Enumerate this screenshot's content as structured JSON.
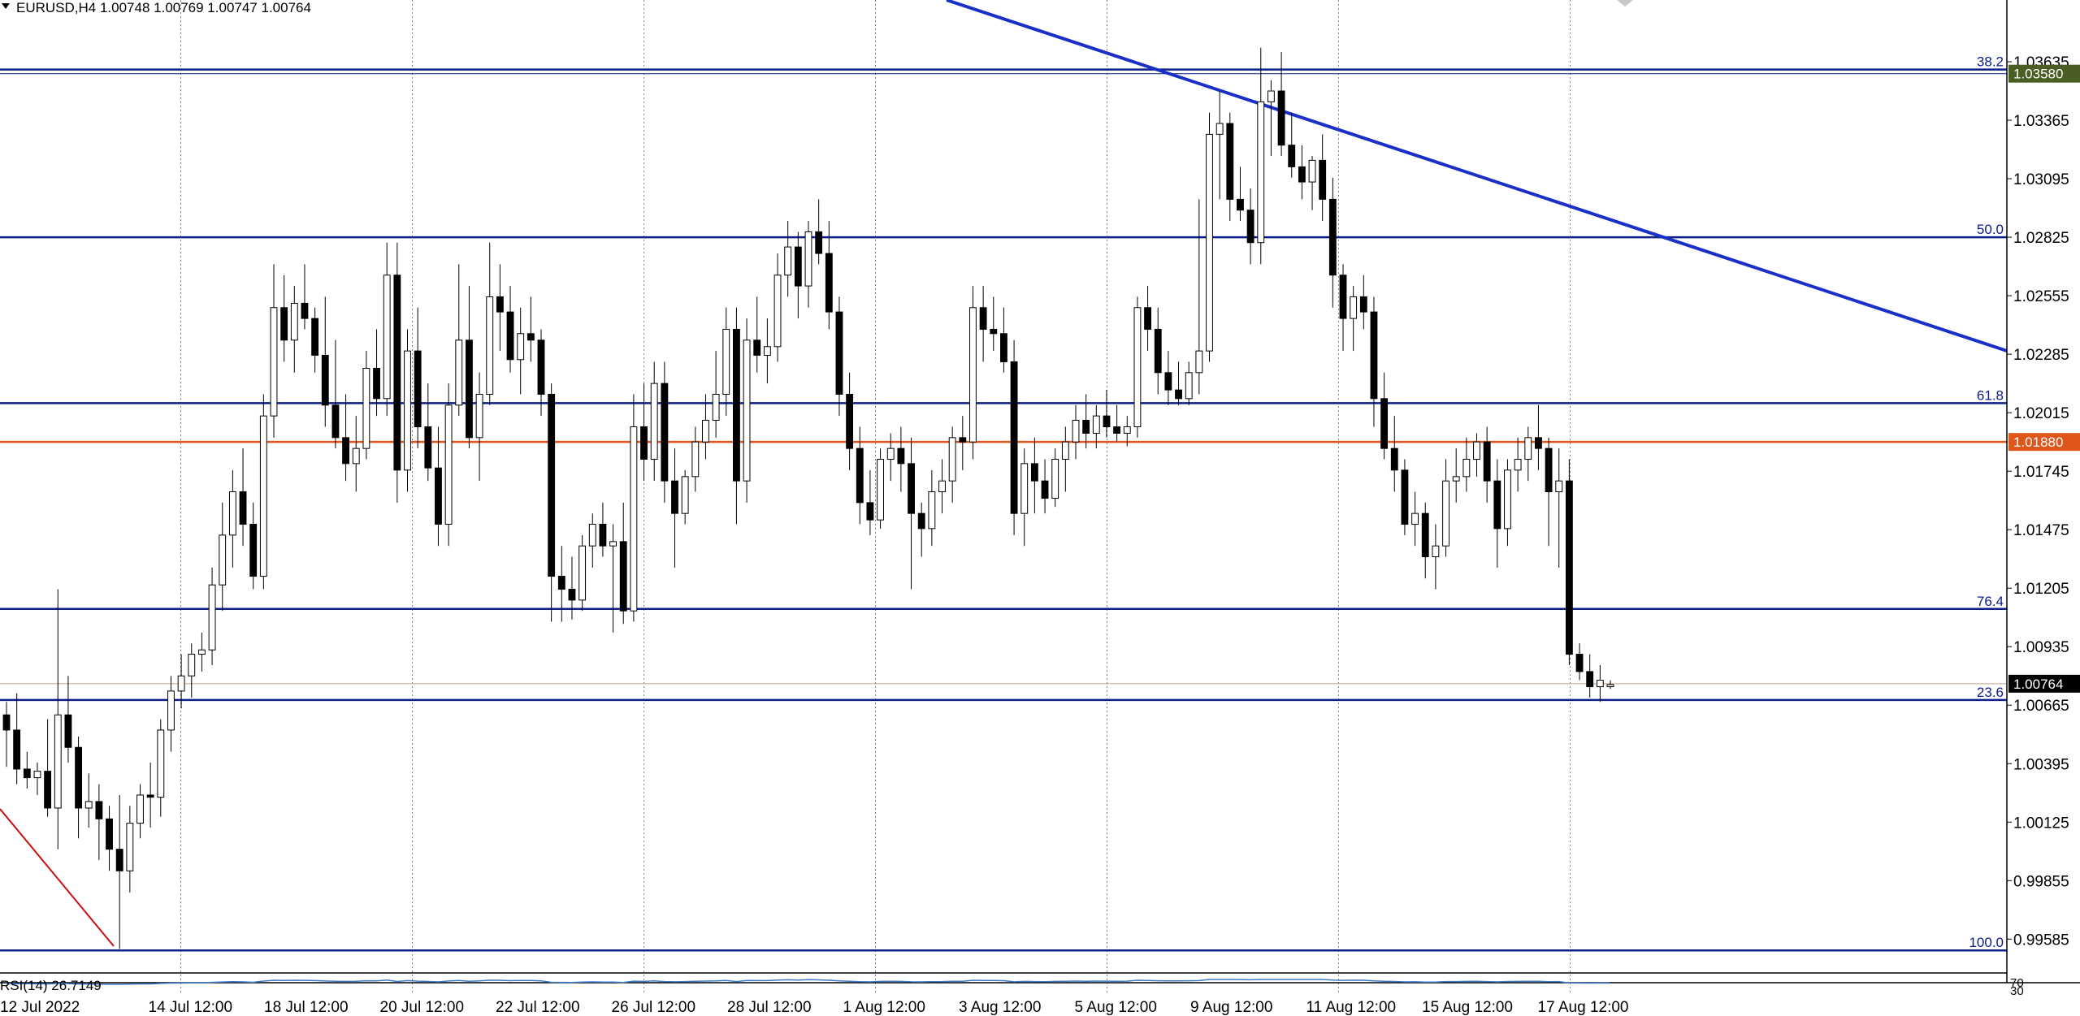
{
  "window": {
    "symbol_header": "EURUSD,H4  1.00748 1.00769 1.00747 1.00764",
    "menu_icon": "triangle-down-icon"
  },
  "colors": {
    "fib_line": "#0d1f8a",
    "trend_line": "#1a2fc8",
    "support_line": "#e0561a",
    "current_price_line": "#c0a08a",
    "red_trend": "#c81010",
    "tag_green": "#4a5e23",
    "tag_orange": "#e0561a",
    "tag_black": "#000000",
    "rsi_line": "#3a78c8",
    "grid": "#808080"
  },
  "chart_data": {
    "type": "candlestick",
    "instrument": "EURUSD",
    "timeframe": "H4",
    "y_axis": {
      "range": [
        0.9944,
        1.0392
      ],
      "tick_labels": [
        "1.03635",
        "1.03365",
        "1.03095",
        "1.02825",
        "1.02555",
        "1.02285",
        "1.02015",
        "1.01745",
        "1.01475",
        "1.01205",
        "1.00935",
        "1.00665",
        "1.00395",
        "1.00125",
        "0.99855",
        "0.99585"
      ]
    },
    "x_axis": {
      "tick_labels": [
        "12 Jul 2022",
        "14 Jul 12:00",
        "18 Jul 12:00",
        "20 Jul 12:00",
        "22 Jul 12:00",
        "26 Jul 12:00",
        "28 Jul 12:00",
        "1 Aug 12:00",
        "3 Aug 12:00",
        "5 Aug 12:00",
        "9 Aug 12:00",
        "11 Aug 12:00",
        "15 Aug 12:00",
        "17 Aug 12:00"
      ]
    },
    "fib_levels": [
      {
        "label": "38.2",
        "price": 1.03599
      },
      {
        "label": "50.0",
        "price": 1.02825
      },
      {
        "label": "61.8",
        "price": 1.02059
      },
      {
        "label": "76.4",
        "price": 1.01109
      },
      {
        "label": "23.6",
        "price": 1.00689
      },
      {
        "label": "100.0",
        "price": 0.99533
      }
    ],
    "price_tags": [
      {
        "label": "1.03580",
        "price": 1.0358,
        "color": "#4a5e23"
      },
      {
        "label": "1.01880",
        "price": 1.0188,
        "color": "#e0561a"
      },
      {
        "label": "1.00764",
        "price": 1.00764,
        "color": "#000000"
      }
    ],
    "candles": [
      [
        1.0062,
        1.0068,
        1.0038,
        1.0055
      ],
      [
        1.0055,
        1.0072,
        1.003,
        1.0037
      ],
      [
        1.0037,
        1.0045,
        1.0028,
        1.0033
      ],
      [
        1.0033,
        1.004,
        1.0025,
        1.0036
      ],
      [
        1.0036,
        1.006,
        1.0015,
        1.0019
      ],
      [
        1.0019,
        1.012,
        1.0,
        1.0062
      ],
      [
        1.0062,
        1.008,
        1.004,
        1.0047
      ],
      [
        1.0047,
        1.0052,
        1.0005,
        1.0019
      ],
      [
        1.0019,
        1.0035,
        1.001,
        1.0022
      ],
      [
        1.0022,
        1.003,
        0.9995,
        1.0014
      ],
      [
        1.0014,
        1.002,
        0.999,
        1.0
      ],
      [
        1.0,
        1.0025,
        0.9954,
        0.999
      ],
      [
        0.999,
        1.002,
        0.998,
        1.0012
      ],
      [
        1.0012,
        1.003,
        1.0005,
        1.0025
      ],
      [
        1.0025,
        1.004,
        1.001,
        1.0024
      ],
      [
        1.0024,
        1.006,
        1.0015,
        1.0055
      ],
      [
        1.0055,
        1.008,
        1.0045,
        1.0073
      ],
      [
        1.0073,
        1.009,
        1.0065,
        1.008
      ],
      [
        1.008,
        1.0095,
        1.007,
        1.009
      ],
      [
        1.009,
        1.01,
        1.0082,
        1.0092
      ],
      [
        1.0092,
        1.013,
        1.0085,
        1.0122
      ],
      [
        1.0122,
        1.016,
        1.011,
        1.0145
      ],
      [
        1.0145,
        1.0175,
        1.013,
        1.0165
      ],
      [
        1.0165,
        1.0185,
        1.014,
        1.015
      ],
      [
        1.015,
        1.016,
        1.012,
        1.0126
      ],
      [
        1.0126,
        1.021,
        1.012,
        1.02
      ],
      [
        1.02,
        1.027,
        1.019,
        1.025
      ],
      [
        1.025,
        1.0265,
        1.0225,
        1.0235
      ],
      [
        1.0235,
        1.026,
        1.022,
        1.0252
      ],
      [
        1.0252,
        1.027,
        1.024,
        1.0245
      ],
      [
        1.0245,
        1.025,
        1.022,
        1.0228
      ],
      [
        1.0228,
        1.0255,
        1.0195,
        1.0205
      ],
      [
        1.0205,
        1.0235,
        1.0185,
        1.019
      ],
      [
        1.019,
        1.021,
        1.017,
        1.0178
      ],
      [
        1.0178,
        1.02,
        1.0165,
        1.0185
      ],
      [
        1.0185,
        1.023,
        1.018,
        1.0222
      ],
      [
        1.0222,
        1.024,
        1.02,
        1.0208
      ],
      [
        1.0208,
        1.028,
        1.02,
        1.0265
      ],
      [
        1.0265,
        1.028,
        1.016,
        1.0175
      ],
      [
        1.0175,
        1.024,
        1.0165,
        1.023
      ],
      [
        1.023,
        1.025,
        1.0185,
        1.0195
      ],
      [
        1.0195,
        1.0215,
        1.017,
        1.0176
      ],
      [
        1.0176,
        1.0195,
        1.014,
        1.015
      ],
      [
        1.015,
        1.0215,
        1.014,
        1.0205
      ],
      [
        1.0205,
        1.027,
        1.02,
        1.0235
      ],
      [
        1.0235,
        1.026,
        1.0185,
        1.019
      ],
      [
        1.019,
        1.022,
        1.017,
        1.021
      ],
      [
        1.021,
        1.028,
        1.0205,
        1.0255
      ],
      [
        1.0255,
        1.027,
        1.023,
        1.0248
      ],
      [
        1.0248,
        1.026,
        1.022,
        1.0226
      ],
      [
        1.0226,
        1.025,
        1.021,
        1.0238
      ],
      [
        1.0238,
        1.0255,
        1.0225,
        1.0235
      ],
      [
        1.0235,
        1.024,
        1.02,
        1.021
      ],
      [
        1.021,
        1.0215,
        1.0105,
        1.0126
      ],
      [
        1.0126,
        1.014,
        1.0105,
        1.012
      ],
      [
        1.012,
        1.0135,
        1.0106,
        1.0115
      ],
      [
        1.0115,
        1.0145,
        1.011,
        1.014
      ],
      [
        1.014,
        1.0155,
        1.013,
        1.015
      ],
      [
        1.015,
        1.016,
        1.0135,
        1.014
      ],
      [
        1.014,
        1.015,
        1.01,
        1.0142
      ],
      [
        1.0142,
        1.016,
        1.0104,
        1.011
      ],
      [
        1.011,
        1.021,
        1.0105,
        1.0195
      ],
      [
        1.0195,
        1.0215,
        1.017,
        1.018
      ],
      [
        1.018,
        1.0225,
        1.017,
        1.0215
      ],
      [
        1.0215,
        1.0225,
        1.016,
        1.017
      ],
      [
        1.017,
        1.0185,
        1.013,
        1.0155
      ],
      [
        1.0155,
        1.0175,
        1.015,
        1.0172
      ],
      [
        1.0172,
        1.0195,
        1.0165,
        1.0188
      ],
      [
        1.0188,
        1.021,
        1.018,
        1.0198
      ],
      [
        1.0198,
        1.023,
        1.019,
        1.021
      ],
      [
        1.021,
        1.025,
        1.02,
        1.024
      ],
      [
        1.024,
        1.025,
        1.015,
        1.017
      ],
      [
        1.017,
        1.0245,
        1.016,
        1.0235
      ],
      [
        1.0235,
        1.0255,
        1.022,
        1.0228
      ],
      [
        1.0228,
        1.0245,
        1.0215,
        1.0232
      ],
      [
        1.0232,
        1.0275,
        1.0225,
        1.0265
      ],
      [
        1.0265,
        1.029,
        1.0255,
        1.0278
      ],
      [
        1.0278,
        1.0285,
        1.0245,
        1.026
      ],
      [
        1.026,
        1.029,
        1.025,
        1.0285
      ],
      [
        1.0285,
        1.03,
        1.027,
        1.0275
      ],
      [
        1.0275,
        1.029,
        1.024,
        1.0248
      ],
      [
        1.0248,
        1.0255,
        1.02,
        1.021
      ],
      [
        1.021,
        1.022,
        1.0175,
        1.0185
      ],
      [
        1.0185,
        1.0195,
        1.015,
        1.016
      ],
      [
        1.016,
        1.0175,
        1.0145,
        1.0152
      ],
      [
        1.0152,
        1.0185,
        1.0148,
        1.018
      ],
      [
        1.018,
        1.0192,
        1.017,
        1.0185
      ],
      [
        1.0185,
        1.0195,
        1.0165,
        1.0178
      ],
      [
        1.0178,
        1.019,
        1.012,
        1.0155
      ],
      [
        1.0155,
        1.016,
        1.0135,
        1.0148
      ],
      [
        1.0148,
        1.0175,
        1.014,
        1.0165
      ],
      [
        1.0165,
        1.018,
        1.0155,
        1.017
      ],
      [
        1.017,
        1.0195,
        1.016,
        1.019
      ],
      [
        1.019,
        1.02,
        1.0175,
        1.0188
      ],
      [
        1.0188,
        1.026,
        1.018,
        1.025
      ],
      [
        1.025,
        1.026,
        1.0225,
        1.024
      ],
      [
        1.024,
        1.0255,
        1.023,
        1.0238
      ],
      [
        1.0238,
        1.025,
        1.022,
        1.0225
      ],
      [
        1.0225,
        1.0235,
        1.0145,
        1.0155
      ],
      [
        1.0155,
        1.0185,
        1.014,
        1.0178
      ],
      [
        1.0178,
        1.019,
        1.0155,
        1.017
      ],
      [
        1.017,
        1.018,
        1.0155,
        1.0162
      ],
      [
        1.0162,
        1.0185,
        1.0158,
        1.018
      ],
      [
        1.018,
        1.0195,
        1.0165,
        1.0188
      ],
      [
        1.0188,
        1.0205,
        1.018,
        1.0198
      ],
      [
        1.0198,
        1.021,
        1.0185,
        1.0192
      ],
      [
        1.0192,
        1.0205,
        1.0185,
        1.02
      ],
      [
        1.02,
        1.0212,
        1.019,
        1.0195
      ],
      [
        1.0195,
        1.0205,
        1.0188,
        1.0192
      ],
      [
        1.0192,
        1.02,
        1.0186,
        1.0195
      ],
      [
        1.0195,
        1.0255,
        1.019,
        1.025
      ],
      [
        1.025,
        1.026,
        1.023,
        1.024
      ],
      [
        1.024,
        1.025,
        1.021,
        1.022
      ],
      [
        1.022,
        1.023,
        1.0205,
        1.0212
      ],
      [
        1.0212,
        1.0225,
        1.0205,
        1.0208
      ],
      [
        1.0208,
        1.0225,
        1.0205,
        1.022
      ],
      [
        1.022,
        1.03,
        1.021,
        1.023
      ],
      [
        1.023,
        1.034,
        1.0225,
        1.033
      ],
      [
        1.033,
        1.035,
        1.03,
        1.0335
      ],
      [
        1.0335,
        1.034,
        1.029,
        1.03
      ],
      [
        1.03,
        1.0315,
        1.029,
        1.0295
      ],
      [
        1.0295,
        1.0305,
        1.027,
        1.028
      ],
      [
        1.028,
        1.037,
        1.027,
        1.0345
      ],
      [
        1.0345,
        1.0355,
        1.032,
        1.035
      ],
      [
        1.035,
        1.0368,
        1.032,
        1.0325
      ],
      [
        1.0325,
        1.034,
        1.031,
        1.0315
      ],
      [
        1.0315,
        1.0325,
        1.03,
        1.0308
      ],
      [
        1.0308,
        1.032,
        1.0295,
        1.0318
      ],
      [
        1.0318,
        1.033,
        1.029,
        1.03
      ],
      [
        1.03,
        1.031,
        1.025,
        1.0265
      ],
      [
        1.0265,
        1.027,
        1.023,
        1.0245
      ],
      [
        1.0245,
        1.026,
        1.023,
        1.0255
      ],
      [
        1.0255,
        1.0265,
        1.024,
        1.0248
      ],
      [
        1.0248,
        1.0255,
        1.0195,
        1.0208
      ],
      [
        1.0208,
        1.022,
        1.018,
        1.0185
      ],
      [
        1.0185,
        1.02,
        1.0165,
        1.0175
      ],
      [
        1.0175,
        1.018,
        1.0145,
        1.015
      ],
      [
        1.015,
        1.0165,
        1.014,
        1.0155
      ],
      [
        1.0155,
        1.016,
        1.0125,
        1.0135
      ],
      [
        1.0135,
        1.015,
        1.012,
        1.014
      ],
      [
        1.014,
        1.018,
        1.0135,
        1.017
      ],
      [
        1.017,
        1.0185,
        1.016,
        1.0172
      ],
      [
        1.0172,
        1.019,
        1.0165,
        1.018
      ],
      [
        1.018,
        1.0192,
        1.0172,
        1.0188
      ],
      [
        1.0188,
        1.0195,
        1.016,
        1.017
      ],
      [
        1.017,
        1.018,
        1.013,
        1.0148
      ],
      [
        1.0148,
        1.018,
        1.014,
        1.0175
      ],
      [
        1.0175,
        1.019,
        1.0165,
        1.018
      ],
      [
        1.018,
        1.0195,
        1.017,
        1.019
      ],
      [
        1.019,
        1.0205,
        1.0175,
        1.0185
      ],
      [
        1.0185,
        1.019,
        1.014,
        1.0165
      ],
      [
        1.0165,
        1.0185,
        1.013,
        1.017
      ],
      [
        1.017,
        1.018,
        1.0085,
        1.009
      ],
      [
        1.009,
        1.0095,
        1.0078,
        1.0082
      ],
      [
        1.0082,
        1.009,
        1.007,
        1.0075
      ],
      [
        1.0075,
        1.0085,
        1.0068,
        1.0078
      ],
      [
        1.0075,
        1.0078,
        1.0074,
        1.0076
      ]
    ],
    "indicator": {
      "name": "RSI(14) 26.7149",
      "levels": [
        "70",
        "30"
      ]
    }
  }
}
